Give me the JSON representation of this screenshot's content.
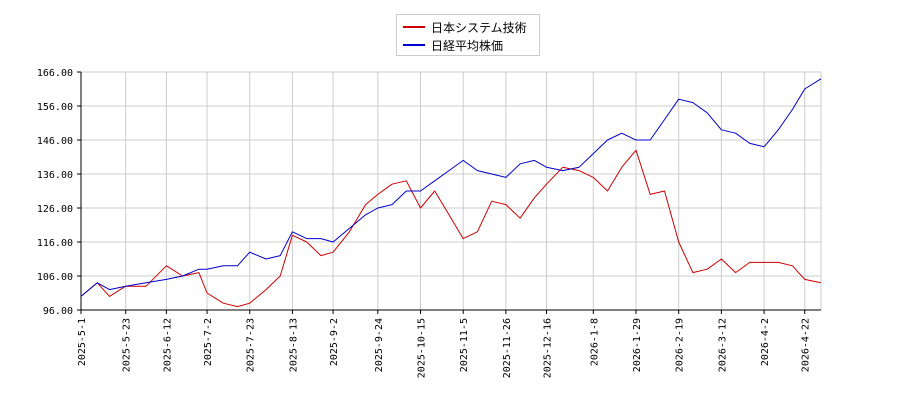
{
  "chart_data": {
    "type": "line",
    "x_start": "2025-5-1",
    "x_end": "2026-4-30",
    "x_ticks": [
      "2025-5-1",
      "2025-5-23",
      "2025-6-12",
      "2025-7-2",
      "2025-7-23",
      "2025-8-13",
      "2025-9-2",
      "2025-9-24",
      "2025-10-15",
      "2025-11-5",
      "2025-11-26",
      "2025-12-16",
      "2026-1-8",
      "2026-1-29",
      "2026-2-19",
      "2026-3-12",
      "2026-4-2",
      "2026-4-22"
    ],
    "y_ticks": [
      "96.00",
      "106.00",
      "116.00",
      "126.00",
      "136.00",
      "146.00",
      "156.00",
      "166.00"
    ],
    "ylim": [
      96,
      166
    ],
    "grid": true,
    "legend_position": "top-center",
    "series": [
      {
        "name": "日本システム技術",
        "color": "#cc0000",
        "x": [
          "2025-5-1",
          "2025-5-9",
          "2025-5-15",
          "2025-5-23",
          "2025-6-2",
          "2025-6-12",
          "2025-6-20",
          "2025-6-28",
          "2025-7-2",
          "2025-7-10",
          "2025-7-17",
          "2025-7-23",
          "2025-7-31",
          "2025-8-7",
          "2025-8-13",
          "2025-8-20",
          "2025-8-27",
          "2025-9-2",
          "2025-9-10",
          "2025-9-18",
          "2025-9-24",
          "2025-10-1",
          "2025-10-8",
          "2025-10-15",
          "2025-10-22",
          "2025-10-29",
          "2025-11-5",
          "2025-11-12",
          "2025-11-19",
          "2025-11-26",
          "2025-12-3",
          "2025-12-10",
          "2025-12-16",
          "2025-12-24",
          "2026-1-1",
          "2026-1-8",
          "2026-1-15",
          "2026-1-22",
          "2026-1-29",
          "2026-2-5",
          "2026-2-12",
          "2026-2-19",
          "2026-2-26",
          "2026-3-5",
          "2026-3-12",
          "2026-3-19",
          "2026-3-26",
          "2026-4-2",
          "2026-4-9",
          "2026-4-16",
          "2026-4-22",
          "2026-4-30"
        ],
        "values": [
          100,
          104,
          100,
          103,
          103,
          109,
          106,
          107,
          101,
          98,
          97,
          98,
          102,
          106,
          118,
          116,
          112,
          113,
          119,
          127,
          130,
          133,
          134,
          126,
          131,
          124,
          117,
          119,
          128,
          127,
          123,
          129,
          133,
          138,
          137,
          135,
          131,
          138,
          143,
          130,
          131,
          116,
          107,
          108,
          111,
          107,
          110,
          110,
          110,
          109,
          105,
          104
        ]
      },
      {
        "name": "日経平均株価",
        "color": "#0000cc",
        "x": [
          "2025-5-1",
          "2025-5-9",
          "2025-5-15",
          "2025-5-23",
          "2025-6-2",
          "2025-6-12",
          "2025-6-20",
          "2025-6-28",
          "2025-7-2",
          "2025-7-10",
          "2025-7-17",
          "2025-7-23",
          "2025-7-31",
          "2025-8-7",
          "2025-8-13",
          "2025-8-20",
          "2025-8-27",
          "2025-9-2",
          "2025-9-10",
          "2025-9-18",
          "2025-9-24",
          "2025-10-1",
          "2025-10-8",
          "2025-10-15",
          "2025-10-22",
          "2025-10-29",
          "2025-11-5",
          "2025-11-12",
          "2025-11-19",
          "2025-11-26",
          "2025-12-3",
          "2025-12-10",
          "2025-12-16",
          "2025-12-24",
          "2026-1-1",
          "2026-1-8",
          "2026-1-15",
          "2026-1-22",
          "2026-1-29",
          "2026-2-5",
          "2026-2-12",
          "2026-2-19",
          "2026-2-26",
          "2026-3-5",
          "2026-3-12",
          "2026-3-19",
          "2026-3-26",
          "2026-4-2",
          "2026-4-9",
          "2026-4-16",
          "2026-4-22",
          "2026-4-30"
        ],
        "values": [
          100,
          104,
          102,
          103,
          104,
          105,
          106,
          108,
          108,
          109,
          109,
          113,
          111,
          112,
          119,
          117,
          117,
          116,
          120,
          124,
          126,
          127,
          131,
          131,
          134,
          137,
          140,
          137,
          136,
          135,
          139,
          140,
          138,
          137,
          138,
          142,
          146,
          148,
          146,
          146,
          152,
          158,
          157,
          154,
          149,
          148,
          145,
          144,
          149,
          155,
          161,
          164
        ]
      }
    ]
  }
}
